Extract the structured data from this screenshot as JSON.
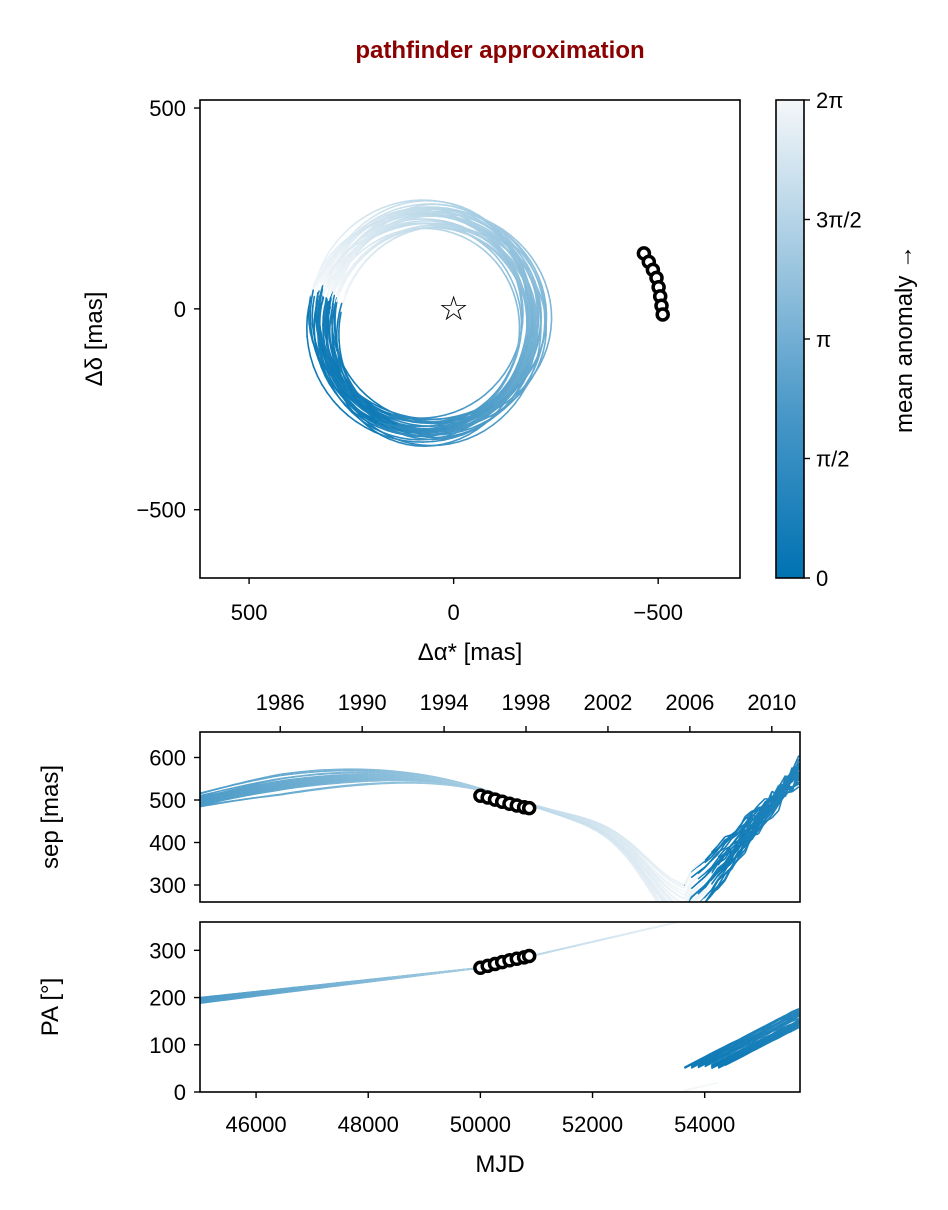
{
  "title": "pathfinder approximation",
  "colors": {
    "title": "#8b0000",
    "cmap_low": "#0072b2",
    "cmap_high": "#f4f7f9"
  },
  "chart_data": [
    {
      "type": "scatter",
      "panel": "sky",
      "xlabel": "Δα* [mas]",
      "ylabel": "Δδ [mas]",
      "xlim": [
        620,
        -700
      ],
      "ylim": [
        -670,
        520
      ],
      "xticks": [
        500,
        0,
        -500
      ],
      "xtick_labels": [
        "500",
        "0",
        "−500"
      ],
      "yticks": [
        500,
        0,
        -500
      ],
      "ytick_labels": [
        "500",
        "0",
        "−500"
      ],
      "star": {
        "x": 0,
        "y": 0,
        "label": "☆"
      },
      "observations": {
        "x": [
          -465,
          -477,
          -487,
          -496,
          -501,
          -505,
          -508,
          -511
        ],
        "y": [
          138,
          117,
          97,
          77,
          54,
          31,
          8,
          -14
        ]
      },
      "orbit_family": {
        "count": 34,
        "center_x": -60,
        "center_y": -35,
        "a": 260,
        "b": 270
      }
    },
    {
      "type": "colorbar",
      "label": "mean anomaly →",
      "range": [
        0,
        6.2832
      ],
      "ticks": [
        0,
        1.5708,
        3.1416,
        4.7124,
        6.2832
      ],
      "tick_labels": [
        "0",
        "π/2",
        "π",
        "3π/2",
        "2π"
      ]
    },
    {
      "type": "line",
      "panel": "sep",
      "xlabel": "",
      "ylabel": "sep [mas]",
      "xlim": [
        45000,
        55700
      ],
      "ylim": [
        260,
        660
      ],
      "yticks": [
        300,
        400,
        500,
        600
      ],
      "top_axis": {
        "ticks": [
          1986,
          1990,
          1994,
          1998,
          2002,
          2006,
          2010
        ],
        "tick_labels": [
          "1986",
          "1990",
          "1994",
          "1998",
          "2002",
          "2006",
          "2010"
        ]
      },
      "observations": {
        "x": [
          50000,
          50130,
          50260,
          50390,
          50520,
          50650,
          50780,
          50870
        ],
        "y": [
          510,
          506,
          501,
          496,
          491,
          487,
          483,
          481
        ]
      }
    },
    {
      "type": "line",
      "panel": "pa",
      "xlabel": "MJD",
      "ylabel": "PA [°]",
      "xlim": [
        45000,
        55700
      ],
      "ylim": [
        0,
        360
      ],
      "xticks": [
        46000,
        48000,
        50000,
        52000,
        54000
      ],
      "yticks": [
        0,
        100,
        200,
        300
      ],
      "observations": {
        "x": [
          50000,
          50130,
          50260,
          50390,
          50520,
          50650,
          50780,
          50870
        ],
        "y": [
          263,
          267,
          271,
          275,
          279,
          282,
          285,
          288
        ]
      }
    }
  ]
}
